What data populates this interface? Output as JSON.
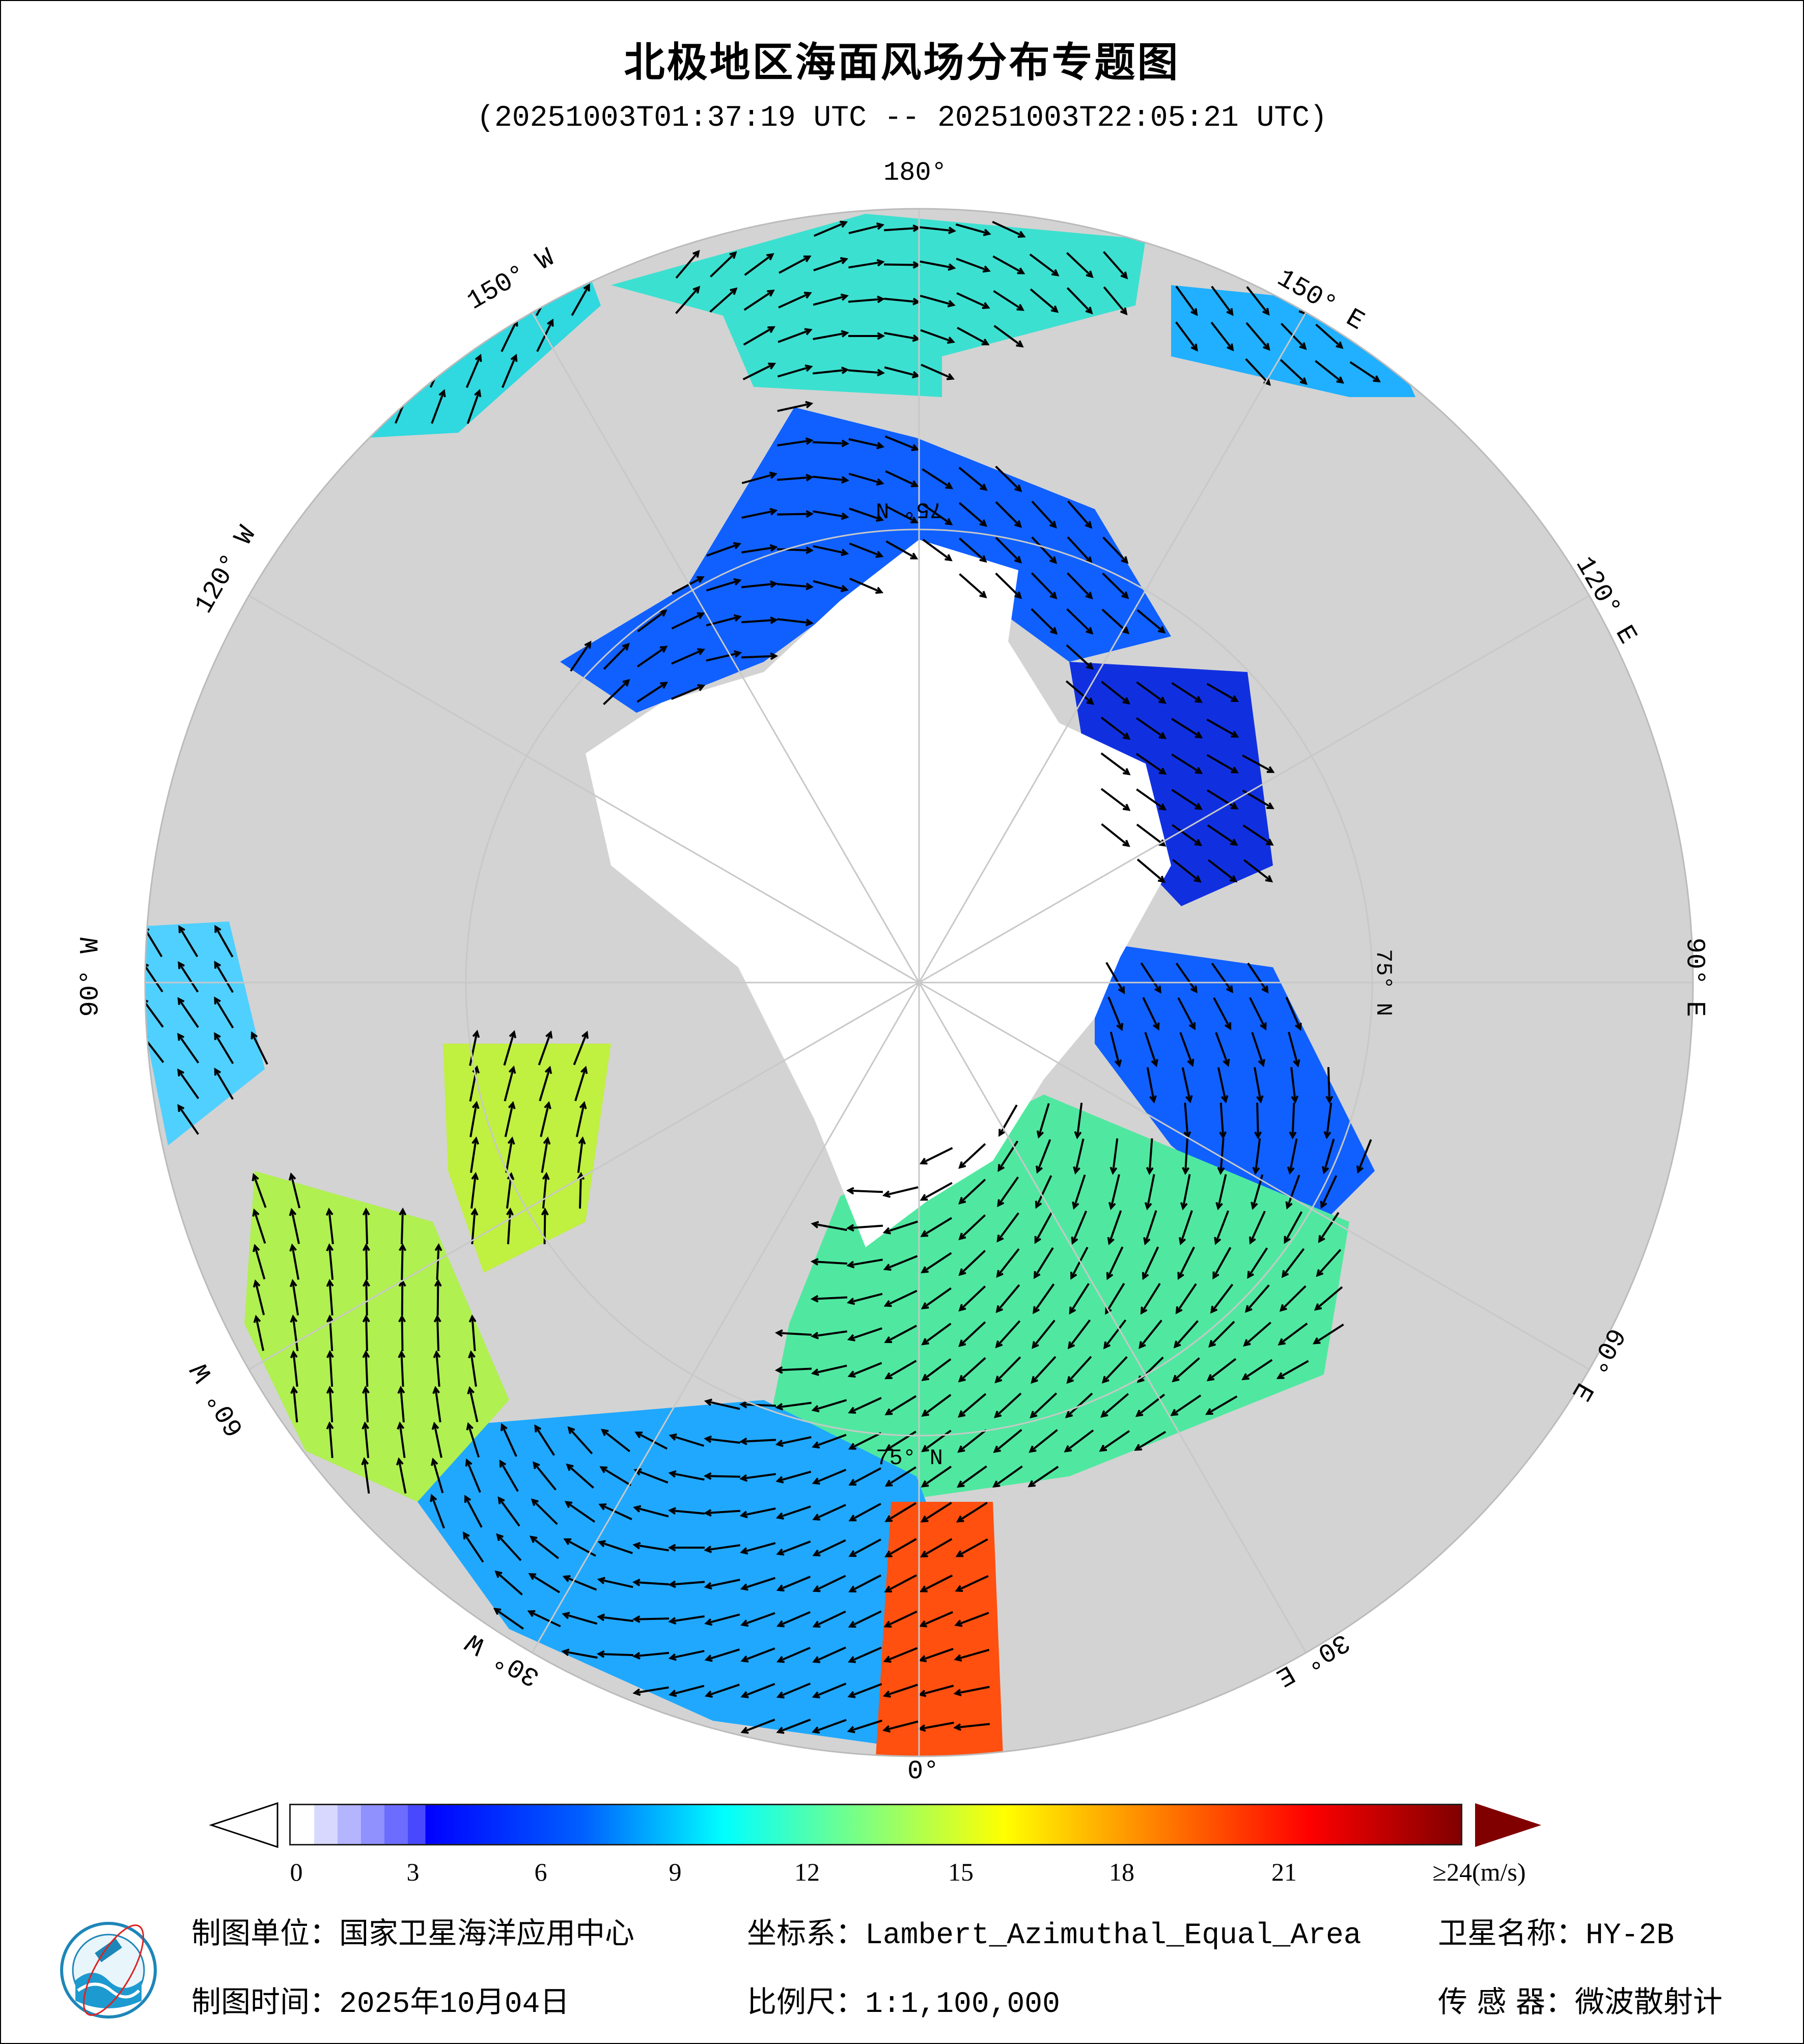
{
  "title": "北极地区海面风场分布专题图",
  "subtitle": "(20251003T01:37:19 UTC -- 20251003T22:05:21 UTC)",
  "map": {
    "projection": "Lambert_Azimuthal_Equal_Area",
    "center": "North Pole",
    "colors": {
      "land": "#d3d3d3",
      "ice": "#ffffff",
      "arrow": "#000000"
    },
    "longitude_labels": [
      "180°",
      "150° E",
      "120° E",
      "90° E",
      "60° E",
      "30° E",
      "0°",
      "30° W",
      "60° W",
      "90° W",
      "120° W",
      "150° W"
    ],
    "latitude_labels": [
      "75° N",
      "75° N",
      "75° N"
    ]
  },
  "colorbar": {
    "colormap": "jet",
    "min": 0,
    "max": 24,
    "ticks": [
      "0",
      "3",
      "6",
      "9",
      "12",
      "15",
      "18",
      "21",
      "≥24(m/s)"
    ],
    "extend_left_color": "#ffffff",
    "extend_right_color": "#800000"
  },
  "footer": {
    "unit_label": "制图单位：",
    "unit_value": "国家卫星海洋应用中心",
    "date_label": "制图时间：",
    "date_value": "2025年10月04日",
    "crs_label": "坐标系：",
    "crs_value": "Lambert_Azimuthal_Equal_Area",
    "scale_label": "比例尺：",
    "scale_value": "1:1,100,000",
    "satellite_label": "卫星名称：",
    "satellite_value": "HY-2B",
    "sensor_label": "传 感 器：",
    "sensor_value": "微波散射计"
  }
}
